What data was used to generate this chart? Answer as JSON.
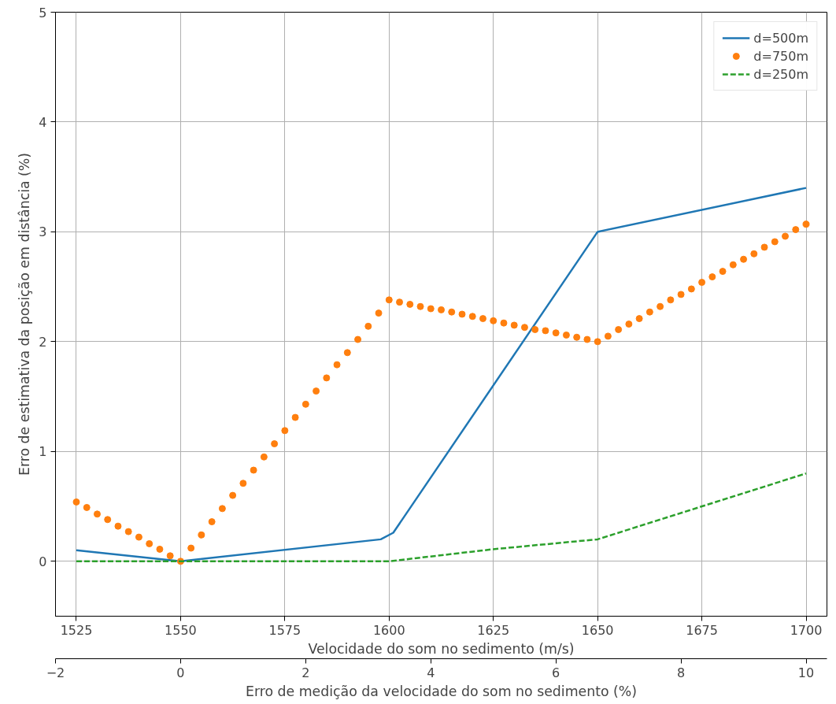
{
  "chart_data": {
    "type": "line",
    "xlabel": "Velocidade do som no sedimento (m/s)",
    "ylabel": "Erro de estimativa da posição em distância (%)",
    "x2label": "Erro de medição da velocidade do som no sedimento (%)",
    "xlim": [
      1520,
      1705
    ],
    "xticks": [
      1525,
      1550,
      1575,
      1600,
      1625,
      1650,
      1675,
      1700
    ],
    "x2lim": [
      -2,
      10.333
    ],
    "x2ticks": [
      {
        "value": -2,
        "label": "−2"
      },
      0,
      2,
      4,
      6,
      8,
      10
    ],
    "ylim": [
      -0.5,
      5
    ],
    "yticks": [
      0,
      1,
      2,
      3,
      4,
      5
    ],
    "grid": true,
    "legend": "top right",
    "series": [
      {
        "name": "d=500m",
        "color": "#1f77b4",
        "line_style": "solid",
        "marker": "none",
        "x": [
          1525,
          1550,
          1598,
          1601,
          1650,
          1700
        ],
        "values": [
          0.1,
          0.0,
          0.2,
          0.26,
          3.0,
          3.4
        ]
      },
      {
        "name": "d=750m",
        "color": "#ff7f0e",
        "type": "scatter",
        "marker": "circle",
        "x": [
          1525,
          1527.5,
          1530,
          1532.5,
          1535,
          1537.5,
          1540,
          1542.5,
          1545,
          1547.5,
          1550,
          1552.5,
          1555,
          1557.5,
          1560,
          1562.5,
          1565,
          1567.5,
          1570,
          1572.5,
          1575,
          1577.5,
          1580,
          1582.5,
          1585,
          1587.5,
          1590,
          1592.5,
          1595,
          1597.5,
          1600,
          1602.5,
          1605,
          1607.5,
          1610,
          1612.5,
          1615,
          1617.5,
          1620,
          1622.5,
          1625,
          1627.5,
          1630,
          1632.5,
          1635,
          1637.5,
          1640,
          1642.5,
          1645,
          1647.5,
          1650,
          1652.5,
          1655,
          1657.5,
          1660,
          1662.5,
          1665,
          1667.5,
          1670,
          1672.5,
          1675,
          1677.5,
          1680,
          1682.5,
          1685,
          1687.5,
          1690,
          1692.5,
          1695,
          1697.5,
          1700
        ],
        "values": [
          0.54,
          0.49,
          0.43,
          0.38,
          0.32,
          0.27,
          0.22,
          0.16,
          0.11,
          0.05,
          0.0,
          0.12,
          0.24,
          0.36,
          0.48,
          0.6,
          0.71,
          0.83,
          0.95,
          1.07,
          1.19,
          1.31,
          1.43,
          1.55,
          1.67,
          1.79,
          1.9,
          2.02,
          2.14,
          2.26,
          2.38,
          2.36,
          2.34,
          2.32,
          2.3,
          2.29,
          2.27,
          2.25,
          2.23,
          2.21,
          2.19,
          2.17,
          2.15,
          2.13,
          2.11,
          2.1,
          2.08,
          2.06,
          2.04,
          2.02,
          2.0,
          2.05,
          2.11,
          2.16,
          2.21,
          2.27,
          2.32,
          2.38,
          2.43,
          2.48,
          2.54,
          2.59,
          2.64,
          2.7,
          2.75,
          2.8,
          2.86,
          2.91,
          2.96,
          3.02,
          3.07
        ]
      },
      {
        "name": "d=250m",
        "color": "#2ca02c",
        "line_style": "dashed",
        "marker": "none",
        "x": [
          1525,
          1550,
          1600,
          1625,
          1650,
          1675,
          1700
        ],
        "values": [
          0.0,
          0.0,
          0.0,
          0.11,
          0.2,
          0.5,
          0.8
        ]
      }
    ]
  }
}
